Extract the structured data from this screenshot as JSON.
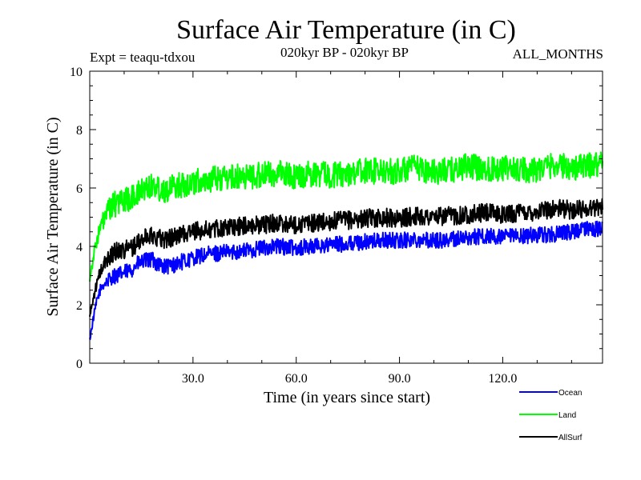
{
  "chart_data": {
    "type": "line",
    "title": "Surface Air Temperature (in C)",
    "subtitle": "020kyr BP - 020kyr BP",
    "experiment_label": "Expt = teaqu-tdxou",
    "months_label": "ALL_MONTHS",
    "xlabel": "Time (in years since start)",
    "ylabel": "Surface Air Temperature (in C)",
    "xlim": [
      0,
      149
    ],
    "ylim": [
      0,
      10
    ],
    "x_ticks": [
      {
        "value": 30,
        "label": "30.0"
      },
      {
        "value": 60,
        "label": "60.0"
      },
      {
        "value": 90,
        "label": "90.0"
      },
      {
        "value": 120,
        "label": "120.0"
      }
    ],
    "y_ticks": [
      {
        "value": 0,
        "label": "0"
      },
      {
        "value": 2,
        "label": "2"
      },
      {
        "value": 4,
        "label": "4"
      },
      {
        "value": 6,
        "label": "6"
      },
      {
        "value": 8,
        "label": "8"
      },
      {
        "value": 10,
        "label": "10"
      }
    ],
    "grid": false,
    "legend_position": "bottom-right",
    "series": [
      {
        "name": "Ocean",
        "color": "#0000ff",
        "x": [
          0,
          1,
          2,
          3,
          4,
          5,
          6,
          7,
          8,
          10,
          12,
          14,
          16,
          18,
          20,
          22,
          24,
          26,
          28,
          30,
          33,
          36,
          40,
          45,
          50,
          55,
          60,
          65,
          70,
          75,
          80,
          85,
          90,
          95,
          100,
          105,
          110,
          115,
          120,
          125,
          130,
          135,
          140,
          145,
          149
        ],
        "y": [
          0.8,
          1.5,
          2.1,
          2.5,
          2.7,
          2.8,
          2.9,
          3.0,
          3.0,
          3.1,
          3.2,
          3.4,
          3.5,
          3.55,
          3.4,
          3.3,
          3.35,
          3.45,
          3.5,
          3.6,
          3.7,
          3.75,
          3.8,
          3.85,
          3.95,
          4.0,
          3.95,
          4.0,
          4.05,
          4.1,
          4.15,
          4.2,
          4.2,
          4.25,
          4.2,
          4.25,
          4.3,
          4.35,
          4.3,
          4.35,
          4.4,
          4.4,
          4.5,
          4.6,
          4.6
        ]
      },
      {
        "name": "Land",
        "color": "#00ff00",
        "x": [
          0,
          1,
          2,
          3,
          4,
          5,
          6,
          7,
          8,
          10,
          12,
          14,
          16,
          18,
          20,
          22,
          24,
          26,
          28,
          30,
          33,
          36,
          40,
          45,
          50,
          55,
          60,
          65,
          70,
          75,
          80,
          85,
          90,
          95,
          100,
          105,
          110,
          115,
          120,
          125,
          130,
          135,
          140,
          145,
          149
        ],
        "y": [
          2.9,
          3.6,
          4.2,
          4.6,
          4.9,
          5.1,
          5.3,
          5.4,
          5.5,
          5.6,
          5.6,
          5.8,
          6.0,
          6.1,
          6.0,
          5.95,
          6.0,
          6.1,
          6.15,
          6.2,
          6.25,
          6.3,
          6.35,
          6.4,
          6.45,
          6.5,
          6.4,
          6.5,
          6.45,
          6.5,
          6.6,
          6.55,
          6.6,
          6.7,
          6.55,
          6.6,
          6.75,
          6.65,
          6.7,
          6.6,
          6.65,
          6.8,
          6.7,
          6.75,
          6.9
        ]
      },
      {
        "name": "AllSurf",
        "color": "#000000",
        "x": [
          0,
          1,
          2,
          3,
          4,
          5,
          6,
          7,
          8,
          10,
          12,
          14,
          16,
          18,
          20,
          22,
          24,
          26,
          28,
          30,
          33,
          36,
          40,
          45,
          50,
          55,
          60,
          65,
          70,
          75,
          80,
          85,
          90,
          95,
          100,
          105,
          110,
          115,
          120,
          125,
          130,
          135,
          140,
          145,
          149
        ],
        "y": [
          1.6,
          2.2,
          2.7,
          3.1,
          3.35,
          3.55,
          3.7,
          3.8,
          3.85,
          3.9,
          3.95,
          4.1,
          4.3,
          4.4,
          4.3,
          4.25,
          4.3,
          4.4,
          4.45,
          4.5,
          4.55,
          4.6,
          4.65,
          4.7,
          4.75,
          4.8,
          4.75,
          4.8,
          4.85,
          4.9,
          4.95,
          5.0,
          4.95,
          5.05,
          5.0,
          5.05,
          5.1,
          5.15,
          5.1,
          5.15,
          5.2,
          5.3,
          5.25,
          5.3,
          5.4
        ]
      }
    ]
  }
}
